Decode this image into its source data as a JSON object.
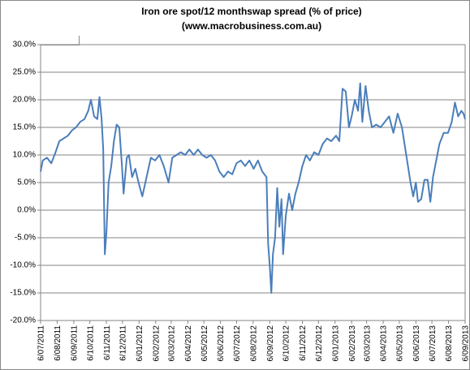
{
  "chart_data": {
    "type": "line",
    "title": "Iron ore spot/12 monthswap spread (% of price)",
    "subtitle": "(www.macrobusiness.com.au)",
    "ylim": [
      -20,
      30
    ],
    "yticks": [
      {
        "value": -20,
        "label": "-20.0%"
      },
      {
        "value": -15,
        "label": "-15.0%"
      },
      {
        "value": -10,
        "label": "-10.0%"
      },
      {
        "value": -5,
        "label": "-5.0%"
      },
      {
        "value": 0,
        "label": "0.0%"
      },
      {
        "value": 5,
        "label": "5.0%"
      },
      {
        "value": 10,
        "label": "10.0%"
      },
      {
        "value": 15,
        "label": "15.0%"
      },
      {
        "value": 20,
        "label": "20.0%"
      },
      {
        "value": 25,
        "label": "25.0%"
      },
      {
        "value": 30,
        "label": "30.0%"
      }
    ],
    "xlim": [
      "2011-07-06",
      "2013-09-06"
    ],
    "xticks": [
      {
        "value": "2011-07-06",
        "label": "6/07/2011"
      },
      {
        "value": "2011-08-06",
        "label": "6/08/2011"
      },
      {
        "value": "2011-09-06",
        "label": "6/09/2011"
      },
      {
        "value": "2011-10-06",
        "label": "6/10/2011"
      },
      {
        "value": "2011-11-06",
        "label": "6/11/2011"
      },
      {
        "value": "2011-12-06",
        "label": "6/12/2011"
      },
      {
        "value": "2012-01-06",
        "label": "6/01/2012"
      },
      {
        "value": "2012-02-06",
        "label": "6/02/2012"
      },
      {
        "value": "2012-03-06",
        "label": "6/03/2012"
      },
      {
        "value": "2012-04-06",
        "label": "6/04/2012"
      },
      {
        "value": "2012-05-06",
        "label": "6/05/2012"
      },
      {
        "value": "2012-06-06",
        "label": "6/06/2012"
      },
      {
        "value": "2012-07-06",
        "label": "6/07/2012"
      },
      {
        "value": "2012-08-06",
        "label": "6/08/2012"
      },
      {
        "value": "2012-09-06",
        "label": "6/09/2012"
      },
      {
        "value": "2012-10-06",
        "label": "6/10/2012"
      },
      {
        "value": "2012-11-06",
        "label": "6/11/2012"
      },
      {
        "value": "2012-12-06",
        "label": "6/12/2012"
      },
      {
        "value": "2013-01-06",
        "label": "6/01/2013"
      },
      {
        "value": "2013-02-06",
        "label": "6/02/2013"
      },
      {
        "value": "2013-03-06",
        "label": "6/03/2013"
      },
      {
        "value": "2013-04-06",
        "label": "6/04/2013"
      },
      {
        "value": "2013-05-06",
        "label": "6/05/2013"
      },
      {
        "value": "2013-06-06",
        "label": "6/06/2013"
      },
      {
        "value": "2013-07-06",
        "label": "6/07/2013"
      },
      {
        "value": "2013-08-06",
        "label": "6/08/2013"
      },
      {
        "value": "2013-09-06",
        "label": "6/09/2013"
      }
    ],
    "grid": true,
    "x": [
      "2011-07-06",
      "2011-07-10",
      "2011-07-18",
      "2011-07-26",
      "2011-08-03",
      "2011-08-10",
      "2011-08-18",
      "2011-08-26",
      "2011-09-03",
      "2011-09-10",
      "2011-09-18",
      "2011-09-26",
      "2011-10-03",
      "2011-10-08",
      "2011-10-14",
      "2011-10-20",
      "2011-10-24",
      "2011-10-28",
      "2011-10-31",
      "2011-11-03",
      "2011-11-06",
      "2011-11-10",
      "2011-11-15",
      "2011-11-20",
      "2011-11-25",
      "2011-11-30",
      "2011-12-05",
      "2011-12-08",
      "2011-12-14",
      "2011-12-18",
      "2011-12-24",
      "2011-12-30",
      "2012-01-05",
      "2012-01-12",
      "2012-01-20",
      "2012-01-28",
      "2012-02-05",
      "2012-02-13",
      "2012-02-21",
      "2012-03-01",
      "2012-03-08",
      "2012-03-16",
      "2012-03-24",
      "2012-04-01",
      "2012-04-09",
      "2012-04-17",
      "2012-04-25",
      "2012-05-03",
      "2012-05-11",
      "2012-05-19",
      "2012-05-27",
      "2012-06-04",
      "2012-06-12",
      "2012-06-20",
      "2012-06-28",
      "2012-07-06",
      "2012-07-14",
      "2012-07-22",
      "2012-07-30",
      "2012-08-07",
      "2012-08-15",
      "2012-08-23",
      "2012-08-31",
      "2012-09-03",
      "2012-09-06",
      "2012-09-09",
      "2012-09-12",
      "2012-09-16",
      "2012-09-20",
      "2012-09-24",
      "2012-09-28",
      "2012-10-01",
      "2012-10-06",
      "2012-10-12",
      "2012-10-18",
      "2012-10-24",
      "2012-10-30",
      "2012-11-06",
      "2012-11-13",
      "2012-11-20",
      "2012-11-28",
      "2012-12-06",
      "2012-12-14",
      "2012-12-22",
      "2012-12-30",
      "2013-01-08",
      "2013-01-14",
      "2013-01-20",
      "2013-01-26",
      "2013-02-01",
      "2013-02-06",
      "2013-02-12",
      "2013-02-18",
      "2013-02-22",
      "2013-02-26",
      "2013-03-04",
      "2013-03-10",
      "2013-03-16",
      "2013-03-24",
      "2013-04-01",
      "2013-04-09",
      "2013-04-17",
      "2013-04-25",
      "2013-05-03",
      "2013-05-11",
      "2013-05-19",
      "2013-05-27",
      "2013-06-01",
      "2013-06-06",
      "2013-06-10",
      "2013-06-16",
      "2013-06-22",
      "2013-06-28",
      "2013-07-03",
      "2013-07-08",
      "2013-07-14",
      "2013-07-20",
      "2013-07-28",
      "2013-08-05",
      "2013-08-12",
      "2013-08-18",
      "2013-08-24",
      "2013-08-30",
      "2013-09-03",
      "2013-09-06"
    ],
    "series": [
      {
        "color": "#4a7ebb",
        "values": [
          7.0,
          9.0,
          9.5,
          8.5,
          10.5,
          12.5,
          13.0,
          13.5,
          14.5,
          15.0,
          16.0,
          16.5,
          18.0,
          20.0,
          17.0,
          16.5,
          20.5,
          16.5,
          11.0,
          -8.0,
          -4.0,
          5.0,
          8.0,
          12.5,
          15.5,
          15.0,
          8.0,
          3.0,
          9.5,
          10.0,
          6.0,
          7.5,
          5.0,
          2.5,
          6.0,
          9.5,
          9.0,
          10.0,
          8.0,
          5.0,
          9.5,
          10.0,
          10.5,
          10.0,
          11.0,
          10.0,
          11.0,
          10.0,
          9.5,
          10.0,
          9.0,
          7.0,
          6.0,
          7.0,
          6.5,
          8.5,
          9.0,
          8.0,
          9.0,
          7.5,
          9.0,
          7.0,
          6.0,
          -6.0,
          -10.0,
          -15.0,
          -8.0,
          -5.0,
          4.0,
          -3.0,
          2.0,
          -8.0,
          -1.0,
          3.0,
          0.0,
          3.0,
          5.0,
          8.0,
          10.0,
          9.0,
          10.5,
          10.0,
          12.0,
          13.0,
          12.5,
          13.5,
          12.5,
          22.0,
          21.5,
          15.0,
          17.0,
          20.0,
          18.0,
          23.0,
          16.0,
          22.5,
          18.0,
          15.0,
          15.5,
          15.0,
          16.0,
          17.0,
          14.0,
          17.5,
          15.0,
          10.0,
          5.0,
          2.5,
          5.0,
          1.5,
          2.0,
          5.5,
          5.5,
          1.5,
          6.0,
          9.0,
          12.0,
          14.0,
          14.0,
          16.0,
          19.5,
          17.0,
          18.0,
          17.5,
          16.5
        ]
      }
    ]
  }
}
